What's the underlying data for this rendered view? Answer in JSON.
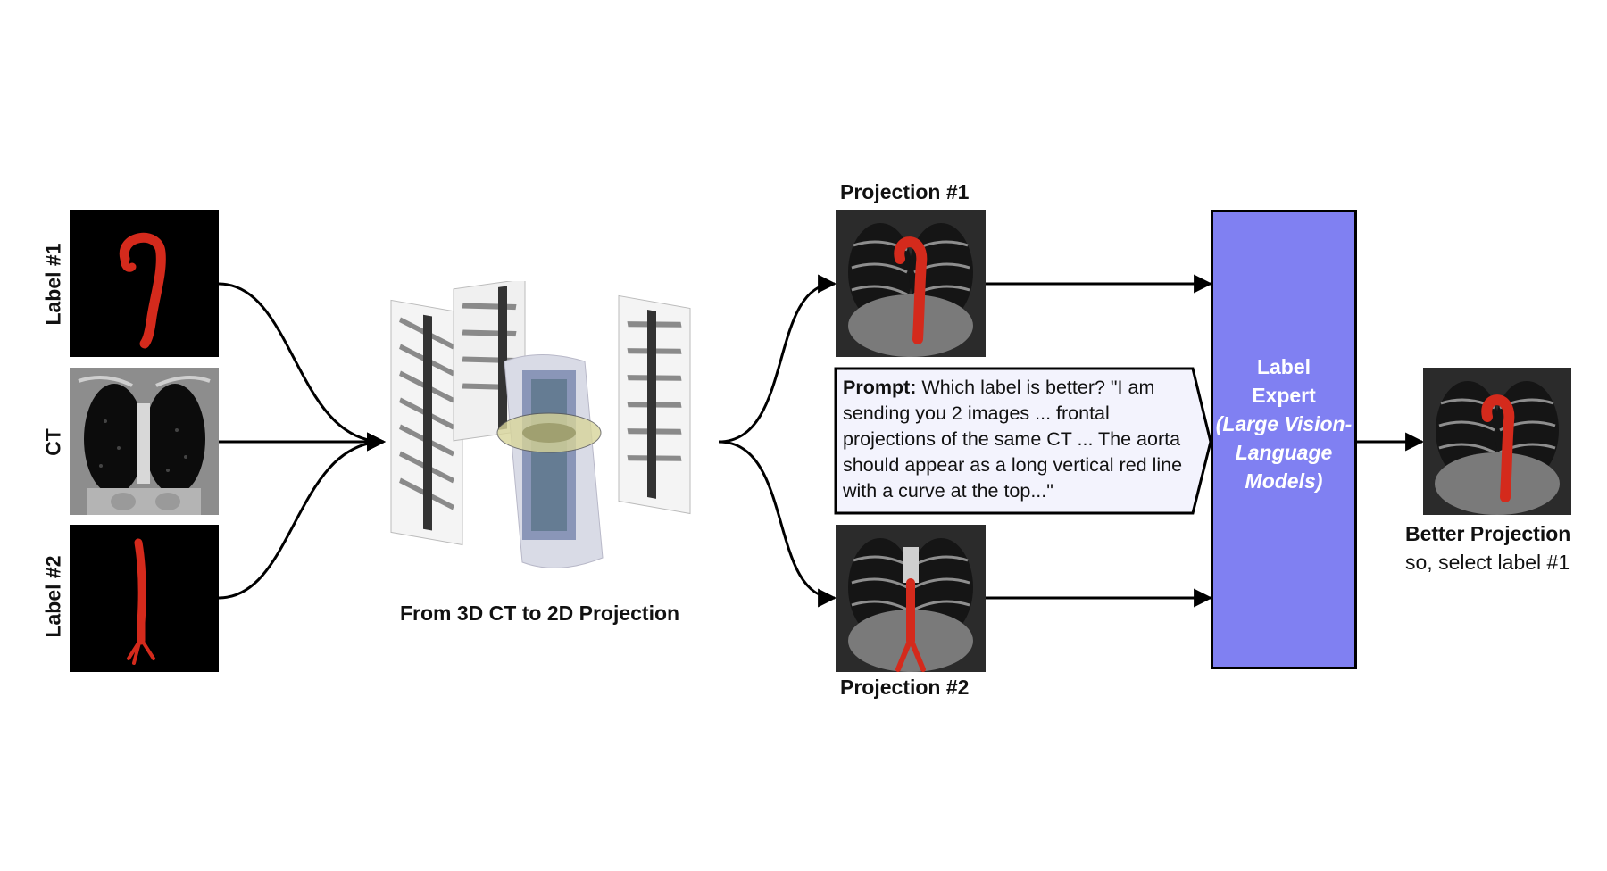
{
  "labels": {
    "label1": "Label #1",
    "ct": "CT",
    "label2": "Label #2"
  },
  "captions": {
    "from_3d": "From 3D CT to 2D Projection",
    "projection1": "Projection #1",
    "projection2": "Projection #2",
    "better_projection": "Better Projection",
    "select": "so, select label #1"
  },
  "prompt": {
    "lead": "Prompt:",
    "body": " Which label is better? \"I am sending you 2 images ... frontal projections of the same CT ... The aorta should appear as a long vertical red line with a curve at the top...\""
  },
  "expert": {
    "title_line1": "Label",
    "title_line2": "Expert",
    "subtitle": "(Large Vision-Language Models)"
  },
  "colors": {
    "expert_fill": "#8080f2",
    "aorta_red": "#d42a1c",
    "prompt_fill": "#f3f3fd"
  }
}
